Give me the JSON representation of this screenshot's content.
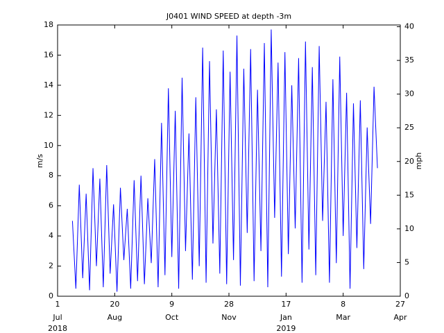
{
  "chart_data": {
    "type": "line",
    "title": "J0401 WIND SPEED at depth -3m",
    "ylabel": "m/s",
    "y2label": "mph",
    "color": "#0000ff",
    "grid": false,
    "xlim": [
      "2018-07-01",
      "2019-04-27"
    ],
    "xticks": [
      {
        "value": "2018-07-01",
        "label": "1",
        "month": "Jul",
        "year": "2018"
      },
      {
        "value": "2018-08-20",
        "label": "20",
        "month": "Aug"
      },
      {
        "value": "2018-10-09",
        "label": "9",
        "month": "Oct"
      },
      {
        "value": "2018-11-28",
        "label": "28",
        "month": "Nov"
      },
      {
        "value": "2019-01-17",
        "label": "17",
        "month": "Jan",
        "year": "2019"
      },
      {
        "value": "2019-03-08",
        "label": "8",
        "month": "Mar"
      },
      {
        "value": "2019-04-27",
        "label": "27",
        "month": "Apr"
      }
    ],
    "ylim": [
      0,
      18
    ],
    "yticks": [
      0,
      2,
      4,
      6,
      8,
      10,
      12,
      14,
      16,
      18
    ],
    "y2lim": [
      0,
      40.26
    ],
    "y2ticks": [
      0,
      5,
      10,
      15,
      20,
      25,
      30,
      35,
      40
    ],
    "x": [
      "2018-07-14",
      "2018-07-17",
      "2018-07-20",
      "2018-07-23",
      "2018-07-26",
      "2018-07-29",
      "2018-08-01",
      "2018-08-04",
      "2018-08-07",
      "2018-08-10",
      "2018-08-13",
      "2018-08-16",
      "2018-08-19",
      "2018-08-22",
      "2018-08-25",
      "2018-08-28",
      "2018-08-31",
      "2018-09-03",
      "2018-09-06",
      "2018-09-09",
      "2018-09-12",
      "2018-09-15",
      "2018-09-18",
      "2018-09-21",
      "2018-09-24",
      "2018-09-27",
      "2018-09-30",
      "2018-10-03",
      "2018-10-06",
      "2018-10-09",
      "2018-10-12",
      "2018-10-15",
      "2018-10-18",
      "2018-10-21",
      "2018-10-24",
      "2018-10-27",
      "2018-10-30",
      "2018-11-02",
      "2018-11-05",
      "2018-11-08",
      "2018-11-11",
      "2018-11-14",
      "2018-11-17",
      "2018-11-20",
      "2018-11-23",
      "2018-11-26",
      "2018-11-29",
      "2018-12-02",
      "2018-12-05",
      "2018-12-08",
      "2018-12-11",
      "2018-12-14",
      "2018-12-17",
      "2018-12-20",
      "2018-12-23",
      "2018-12-26",
      "2018-12-29",
      "2019-01-01",
      "2019-01-04",
      "2019-01-07",
      "2019-01-10",
      "2019-01-13",
      "2019-01-16",
      "2019-01-19",
      "2019-01-22",
      "2019-01-25",
      "2019-01-28",
      "2019-01-31",
      "2019-02-03",
      "2019-02-06",
      "2019-02-09",
      "2019-02-12",
      "2019-02-15",
      "2019-02-18",
      "2019-02-21",
      "2019-02-24",
      "2019-02-27",
      "2019-03-02",
      "2019-03-05",
      "2019-03-08",
      "2019-03-11",
      "2019-03-14",
      "2019-03-17",
      "2019-03-20",
      "2019-03-23",
      "2019-03-26",
      "2019-03-29",
      "2019-04-01",
      "2019-04-04",
      "2019-04-07"
    ],
    "values": [
      5.0,
      0.5,
      7.4,
      1.2,
      6.8,
      0.4,
      8.5,
      2.0,
      7.8,
      0.6,
      8.7,
      1.5,
      6.1,
      0.3,
      7.2,
      2.4,
      5.8,
      0.5,
      7.7,
      1.0,
      8.0,
      0.8,
      6.5,
      2.2,
      9.1,
      0.6,
      11.5,
      1.4,
      13.8,
      2.6,
      12.3,
      0.5,
      14.5,
      3.0,
      10.8,
      1.1,
      13.2,
      2.0,
      16.5,
      0.9,
      15.6,
      3.5,
      12.4,
      1.5,
      16.3,
      0.8,
      14.9,
      2.4,
      17.3,
      0.7,
      15.1,
      4.2,
      16.4,
      1.0,
      13.7,
      3.0,
      16.8,
      0.6,
      17.7,
      5.2,
      15.5,
      1.3,
      16.2,
      2.8,
      14.0,
      4.5,
      15.8,
      0.9,
      16.9,
      3.1,
      15.2,
      1.4,
      16.6,
      5.0,
      12.9,
      0.9,
      14.4,
      2.2,
      15.9,
      4.0,
      13.5,
      0.5,
      12.8,
      3.2,
      13.0,
      1.8,
      11.2,
      4.8,
      13.9,
      8.5
    ]
  }
}
